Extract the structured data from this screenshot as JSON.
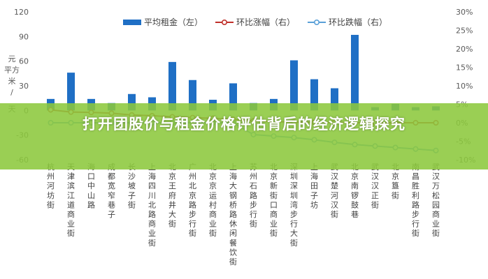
{
  "banner": {
    "title": "打开团股价与租金价格评估背后的经济逻辑探究",
    "color": "#8cc83c"
  },
  "chart_data": {
    "type": "bar",
    "title": "",
    "ylabel": "元平方米/天",
    "ylim": [
      -60,
      120
    ],
    "yticks": [
      -60,
      -30,
      0,
      30,
      60,
      90,
      120
    ],
    "y2lim": [
      -10,
      30
    ],
    "y2ticks": [
      "-10%",
      "-5%",
      "0%",
      "5%",
      "10%",
      "15%",
      "20%",
      "25%",
      "30%"
    ],
    "legend_position": "top",
    "grid": false,
    "categories": [
      "杭州河坊街",
      "天津滨江道商业街",
      "海口中山路",
      "成都宽窄巷子",
      "长沙坡子街",
      "上海四川北路商业街",
      "北京王府井大街",
      "广州北京路步行街",
      "北京京运村商业街",
      "上海大钢桥路休闲餐饮街",
      "苏州石路步行街",
      "北京新街口商业街",
      "深圳深圳湾步行大街",
      "上海田子坊",
      "武汉楚河汉街",
      "北京南锣鼓巷",
      "武汉汉正街",
      "北京簋街",
      "南昌胜利路步行街",
      "武汉万松园商业街"
    ],
    "series": [
      {
        "name": "平均租金（左）",
        "type": "bar",
        "axis": "left",
        "color": "#1f6fc5",
        "values": [
          14,
          46,
          14,
          9,
          20,
          16,
          59,
          37,
          13,
          33,
          9,
          14,
          61,
          38,
          27,
          92,
          4,
          8,
          4,
          5
        ]
      },
      {
        "name": "环比涨幅（右）",
        "type": "line",
        "axis": "right",
        "color": "#c0302a",
        "values": [
          3.5,
          2.9,
          2.8,
          2.6,
          2.1,
          1.9,
          1.6,
          1.4,
          1.2,
          0.9,
          0.5,
          0.3,
          0.2,
          0.1,
          0.1,
          0.0,
          0.0,
          0.0,
          0.0,
          0.0
        ]
      },
      {
        "name": "环比跌幅（右）",
        "type": "line",
        "axis": "right",
        "color": "#5aa0d8",
        "values": [
          0.0,
          0.0,
          0.0,
          0.0,
          0.0,
          0.0,
          0.0,
          0.0,
          0.0,
          0.0,
          -3.2,
          -3.6,
          -4.0,
          -4.6,
          -5.3,
          -5.9,
          -6.3,
          -6.7,
          -7.1,
          -7.5
        ]
      }
    ]
  }
}
